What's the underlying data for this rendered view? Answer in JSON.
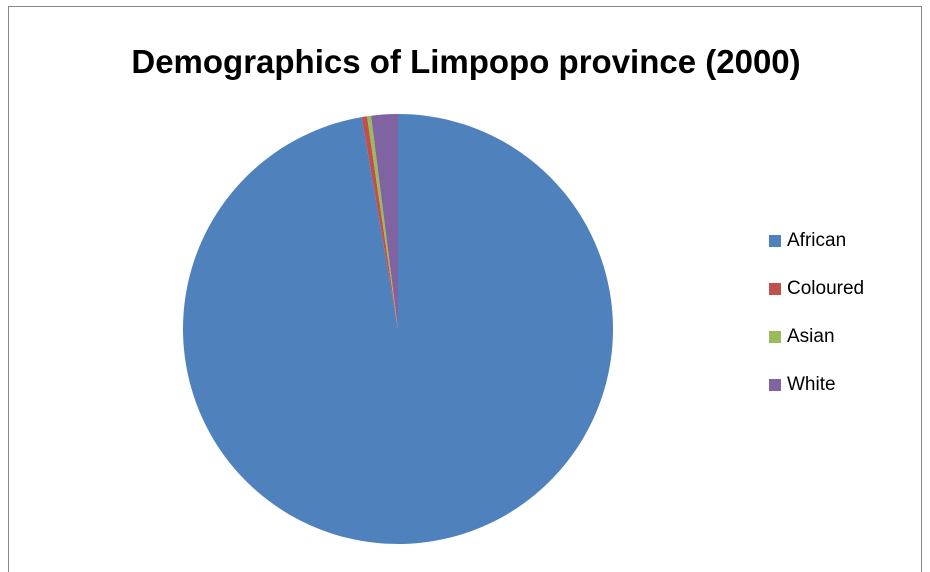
{
  "chart_data": {
    "type": "pie",
    "title": "Demographics of Limpopo province (2000)",
    "categories": [
      "African",
      "Coloured",
      "Asian",
      "White"
    ],
    "values": [
      97.3,
      0.4,
      0.3,
      2.0
    ],
    "colors": [
      "#4F81BD",
      "#C0504D",
      "#9BBB59",
      "#8064A2"
    ],
    "legend_position": "right",
    "start_angle": "12 o'clock",
    "direction": "clockwise"
  }
}
